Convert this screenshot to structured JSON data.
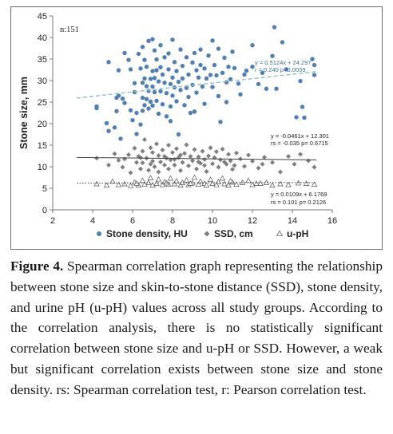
{
  "chart_data": {
    "type": "scatter",
    "n_label": "n:151",
    "ylabel": "Stone size, mm",
    "xlabel": "",
    "xlim": [
      2,
      16
    ],
    "ylim": [
      0,
      45
    ],
    "xticks": [
      2,
      4,
      6,
      8,
      10,
      12,
      14,
      16
    ],
    "yticks": [
      0,
      5,
      10,
      15,
      20,
      25,
      30,
      35,
      40,
      45
    ],
    "grid": false,
    "legend_position": "bottom",
    "colors": {
      "density": "#4e7fb8",
      "ssd": "#7f7f7f",
      "ph": "#ffffff",
      "ph_stroke": "#6a6a6a",
      "density_trend": "#8fc0c8",
      "ssd_trend": "#404040",
      "ph_trend": "#404040"
    },
    "series": [
      {
        "key": "density",
        "name": "Stone density, HU",
        "marker": "circle",
        "trendline": {
          "equation": "y = 0.5124x + 24.297",
          "stats": "r = 0.240 p=0.0039",
          "slope": 0.5124,
          "intercept": 24.297,
          "x_range": [
            3.2,
            15.2
          ],
          "style": "dashed"
        },
        "points": [
          [
            4.2,
            23.6
          ],
          [
            4.2,
            24
          ],
          [
            4.7,
            20.1
          ],
          [
            4.8,
            34.3
          ],
          [
            4.8,
            18.3
          ],
          [
            5.1,
            19.1
          ],
          [
            5.2,
            22.9
          ],
          [
            5.2,
            26
          ],
          [
            5.3,
            32.4
          ],
          [
            5.3,
            26.5
          ],
          [
            5.4,
            16.5
          ],
          [
            5.5,
            25.8
          ],
          [
            5.6,
            36.4
          ],
          [
            5.6,
            24.8
          ],
          [
            5.8,
            34.8
          ],
          [
            5.9,
            32.6
          ],
          [
            5.9,
            23.1
          ],
          [
            6,
            20.8
          ],
          [
            6.1,
            29.4
          ],
          [
            6.1,
            27.3
          ],
          [
            6.2,
            22.5
          ],
          [
            6.2,
            17.6
          ],
          [
            6.3,
            36.2
          ],
          [
            6.4,
            32.8
          ],
          [
            6.5,
            37.8
          ],
          [
            6.5,
            29.5
          ],
          [
            6.5,
            26
          ],
          [
            6.5,
            23
          ],
          [
            6.6,
            34.8
          ],
          [
            6.6,
            30.5
          ],
          [
            6.6,
            24.3
          ],
          [
            6.7,
            28.7
          ],
          [
            6.7,
            33.2
          ],
          [
            6.7,
            25.7
          ],
          [
            6.8,
            39.2
          ],
          [
            6.8,
            27.6
          ],
          [
            6.8,
            23.5
          ],
          [
            6.9,
            30.4
          ],
          [
            6.9,
            25.1
          ],
          [
            7,
            39.6
          ],
          [
            7,
            32.2
          ],
          [
            7,
            28.6
          ],
          [
            7,
            24.2
          ],
          [
            7.1,
            37
          ],
          [
            7.1,
            30.6
          ],
          [
            7.1,
            27.3
          ],
          [
            7.2,
            34.9
          ],
          [
            7.2,
            32.4
          ],
          [
            7.2,
            25.3
          ],
          [
            7.3,
            22.3
          ],
          [
            7.3,
            29.8
          ],
          [
            7.4,
            38.2
          ],
          [
            7.4,
            33.1
          ],
          [
            7.4,
            27.5
          ],
          [
            7.5,
            31.4
          ],
          [
            7.5,
            24.5
          ],
          [
            7.6,
            35.4
          ],
          [
            7.6,
            29.5
          ],
          [
            7.7,
            27.1
          ],
          [
            7.7,
            21.7
          ],
          [
            7.8,
            36.3
          ],
          [
            7.8,
            32.6
          ],
          [
            7.9,
            29.2
          ],
          [
            7.9,
            24
          ],
          [
            8,
            39.5
          ],
          [
            8,
            30.7
          ],
          [
            8,
            26.5
          ],
          [
            8.1,
            34.3
          ],
          [
            8.1,
            28.4
          ],
          [
            8.2,
            32.2
          ],
          [
            8.2,
            25.2
          ],
          [
            8.3,
            29.7
          ],
          [
            8.3,
            17.5
          ],
          [
            8.4,
            37.2
          ],
          [
            8.4,
            27.8
          ],
          [
            8.5,
            33.4
          ],
          [
            8.5,
            30.5
          ],
          [
            8.6,
            24.3
          ],
          [
            8.7,
            35.4
          ],
          [
            8.7,
            28.3
          ],
          [
            8.8,
            31.4
          ],
          [
            8.8,
            26.2
          ],
          [
            8.9,
            22.5
          ],
          [
            9,
            34.2
          ],
          [
            9,
            29
          ],
          [
            9.1,
            36.4
          ],
          [
            9.2,
            32.4
          ],
          [
            9.2,
            27.2
          ],
          [
            9.3,
            30.7
          ],
          [
            9.4,
            37.2
          ],
          [
            9.4,
            33.6
          ],
          [
            9.5,
            28.6
          ],
          [
            9.6,
            32.8
          ],
          [
            9.6,
            24.6
          ],
          [
            9.7,
            30.5
          ],
          [
            9.8,
            35.8
          ],
          [
            9.9,
            31.3
          ],
          [
            10,
            39.3
          ],
          [
            10,
            28.5
          ],
          [
            10.1,
            33.6
          ],
          [
            10.2,
            31.2
          ],
          [
            10.3,
            37.4
          ],
          [
            10.3,
            26.4
          ],
          [
            10.4,
            20.4
          ],
          [
            10.5,
            31.8
          ],
          [
            10.6,
            35.3
          ],
          [
            10.7,
            29.6
          ],
          [
            10.8,
            33.2
          ],
          [
            10.9,
            30.3
          ],
          [
            11,
            36.7
          ],
          [
            11.1,
            32.9
          ],
          [
            11.3,
            29.3
          ],
          [
            11.6,
            31.4
          ],
          [
            11.7,
            32.3
          ],
          [
            12,
            38.2
          ],
          [
            12,
            33.2
          ],
          [
            12.3,
            29.2
          ],
          [
            12.5,
            31.8
          ],
          [
            12.7,
            28.1
          ],
          [
            13,
            35.7
          ],
          [
            13.1,
            42.4
          ],
          [
            13.2,
            28.1
          ],
          [
            13.5,
            38.9
          ],
          [
            13.7,
            32.6
          ],
          [
            14.2,
            21.5
          ],
          [
            14.4,
            29.9
          ],
          [
            14.5,
            23.9
          ],
          [
            14.6,
            21.4
          ],
          [
            15,
            35
          ],
          [
            15.1,
            33.6
          ],
          [
            15.1,
            31.3
          ],
          [
            11.4,
            26.8
          ],
          [
            9.1,
            22.8
          ],
          [
            10.7,
            25
          ],
          [
            7.9,
            20.6
          ],
          [
            6.4,
            19.8
          ]
        ]
      },
      {
        "key": "ssd",
        "name": "SSD, cm",
        "marker": "diamond",
        "trendline": {
          "equation": "y = -0.0461x + 12.301",
          "stats": "rs = -0.035 p= 0.6715",
          "slope": -0.0461,
          "intercept": 12.301,
          "x_range": [
            3.2,
            15.2
          ],
          "style": "solid"
        },
        "points": [
          [
            4.2,
            12
          ],
          [
            4.8,
            10.4
          ],
          [
            5.1,
            13
          ],
          [
            5.3,
            11.5
          ],
          [
            5.5,
            9.9
          ],
          [
            5.8,
            12.8
          ],
          [
            5.9,
            8.6
          ],
          [
            6.1,
            14.3
          ],
          [
            6.2,
            11
          ],
          [
            6.3,
            12.4
          ],
          [
            6.4,
            9.5
          ],
          [
            6.5,
            13.6
          ],
          [
            6.5,
            10.9
          ],
          [
            6.6,
            16.3
          ],
          [
            6.7,
            12
          ],
          [
            6.8,
            9.2
          ],
          [
            6.9,
            14.4
          ],
          [
            7,
            11.3
          ],
          [
            7,
            13.3
          ],
          [
            7.1,
            10
          ],
          [
            7.2,
            15.3
          ],
          [
            7.3,
            12.6
          ],
          [
            7.3,
            8.8
          ],
          [
            7.4,
            11.1
          ],
          [
            7.5,
            13.9
          ],
          [
            7.6,
            10.4
          ],
          [
            7.7,
            12
          ],
          [
            7.8,
            15
          ],
          [
            7.8,
            9.5
          ],
          [
            7.9,
            11.6
          ],
          [
            8,
            13.3
          ],
          [
            8.1,
            10.4
          ],
          [
            8.2,
            14.2
          ],
          [
            8.3,
            12.1
          ],
          [
            8.4,
            9.1
          ],
          [
            8.5,
            11
          ],
          [
            8.6,
            13.1
          ],
          [
            8.7,
            15.1
          ],
          [
            8.8,
            10.2
          ],
          [
            8.9,
            12.4
          ],
          [
            9,
            11.4
          ],
          [
            9.1,
            14
          ],
          [
            9.2,
            9.5
          ],
          [
            9.3,
            12.3
          ],
          [
            9.4,
            10.8
          ],
          [
            9.5,
            13.6
          ],
          [
            9.6,
            11.7
          ],
          [
            9.7,
            8.9
          ],
          [
            9.8,
            12.5
          ],
          [
            9.9,
            14.4
          ],
          [
            10,
            10.7
          ],
          [
            10.1,
            12.1
          ],
          [
            10.2,
            13.5
          ],
          [
            10.3,
            9.9
          ],
          [
            10.4,
            11.6
          ],
          [
            10.5,
            14.1
          ],
          [
            10.7,
            10.6
          ],
          [
            10.8,
            12.9
          ],
          [
            10.9,
            11.4
          ],
          [
            11,
            9.4
          ],
          [
            11.2,
            13.2
          ],
          [
            11.4,
            11.8
          ],
          [
            11.6,
            10.1
          ],
          [
            11.8,
            12.7
          ],
          [
            12,
            11.3
          ],
          [
            12.3,
            9.7
          ],
          [
            12.6,
            12.2
          ],
          [
            13,
            11
          ],
          [
            13.4,
            8.8
          ],
          [
            13.8,
            12.4
          ],
          [
            14.1,
            10.6
          ],
          [
            14.4,
            12.9
          ],
          [
            14.8,
            11.4
          ],
          [
            15.1,
            9.9
          ],
          [
            5.6,
            11.8
          ],
          [
            6.9,
            10.6
          ],
          [
            8.4,
            12.7
          ],
          [
            9.6,
            10.3
          ],
          [
            10.6,
            11.1
          ],
          [
            7.6,
            12.4
          ],
          [
            8.1,
            11.7
          ],
          [
            9.3,
            11.1
          ],
          [
            6.4,
            12.1
          ],
          [
            11.1,
            10.3
          ],
          [
            12.5,
            10.6
          ]
        ]
      },
      {
        "key": "ph",
        "name": "u-pH",
        "marker": "triangle",
        "trendline": {
          "equation": "y = 0.0109x + 6.1769",
          "stats": "rs = 0.101 p= 0.2126",
          "slope": 0.0109,
          "intercept": 6.1769,
          "x_range": [
            3.2,
            15.2
          ],
          "style": "dotted"
        },
        "points": [
          [
            4.2,
            6
          ],
          [
            4.7,
            5.7
          ],
          [
            5,
            6.6
          ],
          [
            5.3,
            5.8
          ],
          [
            5.6,
            6
          ],
          [
            5.9,
            5.6
          ],
          [
            6.1,
            6.4
          ],
          [
            6.3,
            5.7
          ],
          [
            6.5,
            6.8
          ],
          [
            6.6,
            5.9
          ],
          [
            6.8,
            6.3
          ],
          [
            6.9,
            7.4
          ],
          [
            7,
            5.7
          ],
          [
            7.2,
            6.1
          ],
          [
            7.3,
            7.1
          ],
          [
            7.5,
            5.8
          ],
          [
            7.6,
            6.5
          ],
          [
            7.8,
            5.9
          ],
          [
            7.9,
            7.3
          ],
          [
            8.1,
            6
          ],
          [
            8.2,
            6.7
          ],
          [
            8.4,
            5.7
          ],
          [
            8.5,
            6.3
          ],
          [
            8.7,
            6.9
          ],
          [
            8.8,
            5.8
          ],
          [
            9,
            6.2
          ],
          [
            9.1,
            7.5
          ],
          [
            9.3,
            5.9
          ],
          [
            9.4,
            6.6
          ],
          [
            9.6,
            6.1
          ],
          [
            9.7,
            5.7
          ],
          [
            9.9,
            7
          ],
          [
            10,
            6.1
          ],
          [
            10.2,
            5.8
          ],
          [
            10.3,
            6.5
          ],
          [
            10.5,
            7.3
          ],
          [
            10.6,
            6
          ],
          [
            10.8,
            5.7
          ],
          [
            11,
            6.4
          ],
          [
            11.2,
            5.9
          ],
          [
            11.5,
            6.3
          ],
          [
            11.8,
            6.8
          ],
          [
            12,
            5.8
          ],
          [
            12.4,
            6.1
          ],
          [
            12.7,
            6.3
          ],
          [
            13,
            5.7
          ],
          [
            13.4,
            6
          ],
          [
            13.8,
            5.8
          ],
          [
            14.3,
            6.2
          ],
          [
            14.7,
            6.1
          ],
          [
            15.1,
            5.9
          ],
          [
            6.2,
            6.1
          ],
          [
            7.7,
            6.2
          ],
          [
            8.9,
            6.1
          ],
          [
            10.9,
            6.7
          ],
          [
            12.2,
            6.1
          ]
        ]
      }
    ]
  },
  "caption": {
    "label": "Figure 4.",
    "text": "Spearman correlation graph representing the relationship between stone size and skin-to-stone distance (SSD), stone density, and urine pH (u-pH) values across all study groups. According to the correlation analysis, there is no statistically significant correlation between stone size and u-pH or SSD. However, a weak but significant correlation exists between stone size and stone density. rs: Spearman correlation test, r: Pearson correlation test."
  }
}
